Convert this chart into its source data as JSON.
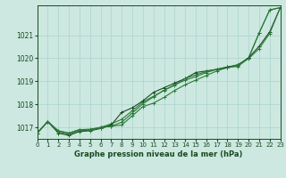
{
  "title": "Graphe pression niveau de la mer (hPa)",
  "bg_color": "#cce8e0",
  "grid_color": "#aad4cc",
  "line_colors": [
    "#2d7a3a",
    "#2d7a3a",
    "#1a4a20",
    "#2d7a3a"
  ],
  "xlim": [
    0,
    23
  ],
  "ylim": [
    1016.5,
    1022.3
  ],
  "yticks": [
    1017,
    1018,
    1019,
    1020,
    1021
  ],
  "xticks": [
    0,
    1,
    2,
    3,
    4,
    5,
    6,
    7,
    8,
    9,
    10,
    11,
    12,
    13,
    14,
    15,
    16,
    17,
    18,
    19,
    20,
    21,
    22,
    23
  ],
  "series": [
    [
      1016.75,
      1017.25,
      1016.85,
      1016.75,
      1016.9,
      1016.9,
      1017.0,
      1017.05,
      1017.1,
      1017.5,
      1017.9,
      1018.05,
      1018.3,
      1018.6,
      1018.85,
      1019.05,
      1019.25,
      1019.45,
      1019.6,
      1019.65,
      1020.0,
      1021.1,
      1022.1,
      1022.2
    ],
    [
      1016.75,
      1017.25,
      1016.85,
      1016.75,
      1016.9,
      1016.92,
      1017.0,
      1017.15,
      1017.35,
      1017.72,
      1018.1,
      1018.35,
      1018.6,
      1018.85,
      1019.05,
      1019.2,
      1019.38,
      1019.52,
      1019.62,
      1019.68,
      1020.02,
      1021.1,
      1022.1,
      1022.2
    ],
    [
      1016.75,
      1017.25,
      1016.75,
      1016.65,
      1016.82,
      1016.85,
      1016.95,
      1017.1,
      1017.65,
      1017.85,
      1018.15,
      1018.52,
      1018.72,
      1018.92,
      1019.12,
      1019.38,
      1019.45,
      1019.52,
      1019.62,
      1019.72,
      1020.02,
      1020.52,
      1021.15,
      1022.2
    ],
    [
      1016.75,
      1017.25,
      1016.8,
      1016.7,
      1016.85,
      1016.88,
      1016.98,
      1017.05,
      1017.22,
      1017.62,
      1018.02,
      1018.32,
      1018.62,
      1018.82,
      1019.12,
      1019.28,
      1019.42,
      1019.52,
      1019.58,
      1019.72,
      1019.98,
      1020.42,
      1021.08,
      1022.2
    ]
  ]
}
